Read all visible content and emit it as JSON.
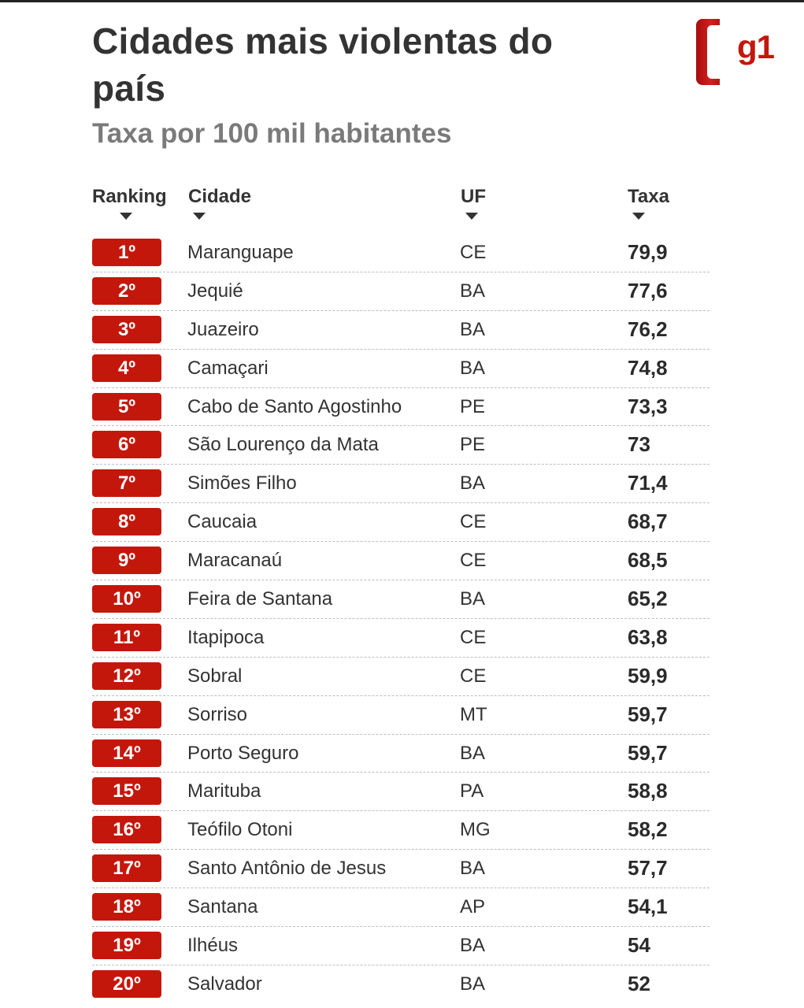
{
  "title": "Cidades mais violentas do país",
  "subtitle": "Taxa por 100 mil habitantes",
  "logo_text": "g1",
  "columns": {
    "ranking": "Ranking",
    "cidade": "Cidade",
    "uf": "UF",
    "taxa": "Taxa"
  },
  "colors": {
    "accent": "#c4170c",
    "title": "#333333",
    "subtitle": "#7a7a7a"
  },
  "chart_data": {
    "type": "table",
    "title": "Cidades mais violentas do país",
    "subtitle": "Taxa por 100 mil habitantes",
    "columns": [
      "Ranking",
      "Cidade",
      "UF",
      "Taxa"
    ],
    "rows": [
      {
        "rank": "1º",
        "city": "Maranguape",
        "uf": "CE",
        "rate": "79,9"
      },
      {
        "rank": "2º",
        "city": "Jequié",
        "uf": "BA",
        "rate": "77,6"
      },
      {
        "rank": "3º",
        "city": "Juazeiro",
        "uf": "BA",
        "rate": "76,2"
      },
      {
        "rank": "4º",
        "city": "Camaçari",
        "uf": "BA",
        "rate": "74,8"
      },
      {
        "rank": "5º",
        "city": "Cabo de Santo Agostinho",
        "uf": "PE",
        "rate": "73,3"
      },
      {
        "rank": "6º",
        "city": "São Lourenço da Mata",
        "uf": "PE",
        "rate": "73"
      },
      {
        "rank": "7º",
        "city": "Simões Filho",
        "uf": "BA",
        "rate": "71,4"
      },
      {
        "rank": "8º",
        "city": "Caucaia",
        "uf": "CE",
        "rate": "68,7"
      },
      {
        "rank": "9º",
        "city": "Maracanaú",
        "uf": "CE",
        "rate": "68,5"
      },
      {
        "rank": "10º",
        "city": "Feira de Santana",
        "uf": "BA",
        "rate": "65,2"
      },
      {
        "rank": "11º",
        "city": "Itapipoca",
        "uf": "CE",
        "rate": "63,8"
      },
      {
        "rank": "12º",
        "city": "Sobral",
        "uf": "CE",
        "rate": "59,9"
      },
      {
        "rank": "13º",
        "city": "Sorriso",
        "uf": "MT",
        "rate": "59,7"
      },
      {
        "rank": "14º",
        "city": "Porto Seguro",
        "uf": "BA",
        "rate": "59,7"
      },
      {
        "rank": "15º",
        "city": "Marituba",
        "uf": "PA",
        "rate": "58,8"
      },
      {
        "rank": "16º",
        "city": "Teófilo Otoni",
        "uf": "MG",
        "rate": "58,2"
      },
      {
        "rank": "17º",
        "city": "Santo Antônio de Jesus",
        "uf": "BA",
        "rate": "57,7"
      },
      {
        "rank": "18º",
        "city": "Santana",
        "uf": "AP",
        "rate": "54,1"
      },
      {
        "rank": "19º",
        "city": "Ilhéus",
        "uf": "BA",
        "rate": "54"
      },
      {
        "rank": "20º",
        "city": "Salvador",
        "uf": "BA",
        "rate": "52"
      }
    ]
  }
}
